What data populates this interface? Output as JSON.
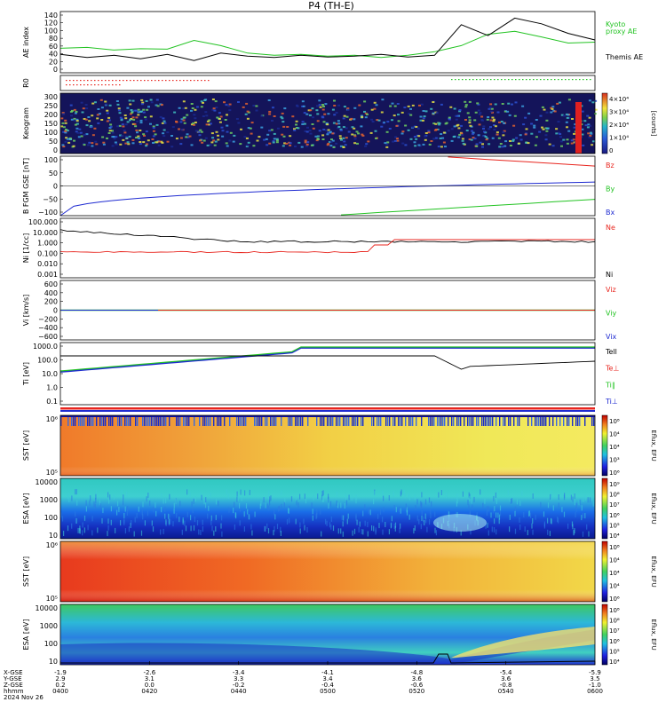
{
  "title": "P4 (TH-E)",
  "colors": {
    "red": "#e8261f",
    "green": "#22c322",
    "blue": "#1f2bd1",
    "black": "#000000"
  },
  "chart_data": [
    {
      "type": "line",
      "id": "ae",
      "ylabel": "AE index",
      "yticks": [
        "140",
        "120",
        "100",
        "80",
        "60",
        "40",
        "20",
        "0"
      ],
      "ylim": [
        0,
        140
      ],
      "series": [
        {
          "name": "Kyoto proxy AE",
          "label_line1": "Kyoto",
          "label_line2": "proxy AE",
          "color": "green",
          "x": [
            0,
            0.05,
            0.1,
            0.15,
            0.2,
            0.25,
            0.3,
            0.35,
            0.4,
            0.45,
            0.5,
            0.55,
            0.6,
            0.65,
            0.7,
            0.75,
            0.8,
            0.85,
            0.9,
            0.95,
            1
          ],
          "values": [
            56,
            58,
            52,
            55,
            54,
            74,
            62,
            45,
            40,
            42,
            38,
            40,
            35,
            40,
            48,
            62,
            88,
            95,
            82,
            68,
            70
          ]
        },
        {
          "name": "Themis AE",
          "color": "black",
          "x": [
            0,
            0.05,
            0.1,
            0.15,
            0.2,
            0.25,
            0.3,
            0.35,
            0.4,
            0.45,
            0.5,
            0.55,
            0.6,
            0.65,
            0.7,
            0.75,
            0.8,
            0.85,
            0.9,
            0.95,
            1
          ],
          "values": [
            42,
            35,
            40,
            32,
            42,
            28,
            45,
            38,
            35,
            40,
            36,
            38,
            42,
            36,
            40,
            110,
            85,
            125,
            112,
            90,
            75
          ]
        }
      ]
    },
    {
      "type": "line",
      "id": "ro",
      "ylabel": "R0"
    },
    {
      "type": "heatmap",
      "id": "keogram",
      "ylabel": "Keogram",
      "yticks": [
        "300",
        "250",
        "200",
        "150",
        "100",
        "50",
        "0"
      ],
      "colorbar_ticks": [
        "4×10⁴",
        "3×10⁴",
        "2×10⁴",
        "1×10⁴",
        "0"
      ],
      "colorbar_label": "[counts]"
    },
    {
      "type": "line",
      "id": "bfgm",
      "ylabel": "B FGM GSE [nT]",
      "yticks": [
        "100",
        "50",
        "0",
        "−50",
        "−100"
      ],
      "ylim": [
        -100,
        100
      ],
      "series": [
        {
          "name": "Bz",
          "color": "red"
        },
        {
          "name": "By",
          "color": "green"
        },
        {
          "name": "Bx",
          "color": "blue"
        }
      ]
    },
    {
      "type": "line",
      "id": "ni",
      "ylabel": "Ni [1/cc]",
      "yticks": [
        "100.000",
        "10.000",
        "1.000",
        "0.100",
        "0.010",
        "0.001"
      ],
      "series": [
        {
          "name": "Ne",
          "color": "red"
        },
        {
          "name": "Ni",
          "color": "black"
        }
      ]
    },
    {
      "type": "line",
      "id": "vi",
      "ylabel": "Vi [km/s]",
      "yticks": [
        "600",
        "400",
        "200",
        "0",
        "−200",
        "−400",
        "−600"
      ],
      "ylim": [
        -700,
        700
      ],
      "series": [
        {
          "name": "Viz",
          "color": "red"
        },
        {
          "name": "Viy",
          "color": "green"
        },
        {
          "name": "Vix",
          "color": "blue"
        }
      ]
    },
    {
      "type": "line",
      "id": "ti",
      "ylabel": "Ti [eV]",
      "yticks": [
        "1000.0",
        "100.0",
        "10.0",
        "1.0",
        "0.1"
      ],
      "series": [
        {
          "name": "Tell",
          "color": "black"
        },
        {
          "name": "Te⊥",
          "color": "red"
        },
        {
          "name": "Ti∥",
          "color": "green"
        },
        {
          "name": "Ti⊥",
          "color": "blue"
        }
      ]
    },
    {
      "type": "heatmap",
      "id": "sst_e",
      "ylabel": "SST [eV]",
      "yticks": [
        "10⁶",
        "10⁵"
      ],
      "colorbar_ticks": [
        "10⁸",
        "10⁴",
        "10⁴",
        "10³",
        "10⁶"
      ],
      "colorbar_label": "Eflux, EFU"
    },
    {
      "type": "heatmap",
      "id": "esa_e",
      "ylabel": "ESA [eV]",
      "yticks": [
        "10000",
        "1000",
        "100",
        "10"
      ],
      "colorbar_ticks": [
        "10⁹",
        "10⁸",
        "10⁷",
        "10⁶",
        "10⁵",
        "10⁴"
      ],
      "colorbar_label": "Eflux, EFU"
    },
    {
      "type": "heatmap",
      "id": "sst_i",
      "ylabel": "SST [eV]",
      "yticks": [
        "10⁶",
        "10⁵"
      ],
      "colorbar_ticks": [
        "10⁸",
        "10⁴",
        "10⁴",
        "10⁴",
        "10⁶"
      ],
      "colorbar_label": "Eflux, EFU"
    },
    {
      "type": "heatmap",
      "id": "esa_i",
      "ylabel": "ESA [eV]",
      "yticks": [
        "10000",
        "1000",
        "100",
        "10"
      ],
      "colorbar_ticks": [
        "10⁸",
        "10⁸",
        "10⁷",
        "10⁶",
        "10⁵",
        "10⁴"
      ],
      "colorbar_label": "Eflux, EFU"
    }
  ],
  "xaxis": {
    "row_labels": [
      "X-GSE",
      "Y-GSE",
      "Z-GSE",
      "hhmm",
      "2024 Nov 26"
    ],
    "ticks": [
      {
        "x": "-1.9",
        "y": "2.9",
        "z": "0.2",
        "t": "0400"
      },
      {
        "x": "-2.6",
        "y": "3.1",
        "z": "0.0",
        "t": "0420"
      },
      {
        "x": "-3.4",
        "y": "3.3",
        "z": "-0.2",
        "t": "0440"
      },
      {
        "x": "-4.1",
        "y": "3.4",
        "z": "-0.4",
        "t": "0500"
      },
      {
        "x": "-4.8",
        "y": "3.6",
        "z": "-0.6",
        "t": "0520"
      },
      {
        "x": "-5.4",
        "y": "3.6",
        "z": "-0.8",
        "t": "0540"
      },
      {
        "x": "-5.9",
        "y": "3.5",
        "z": "-1.0",
        "t": "0600"
      }
    ]
  }
}
